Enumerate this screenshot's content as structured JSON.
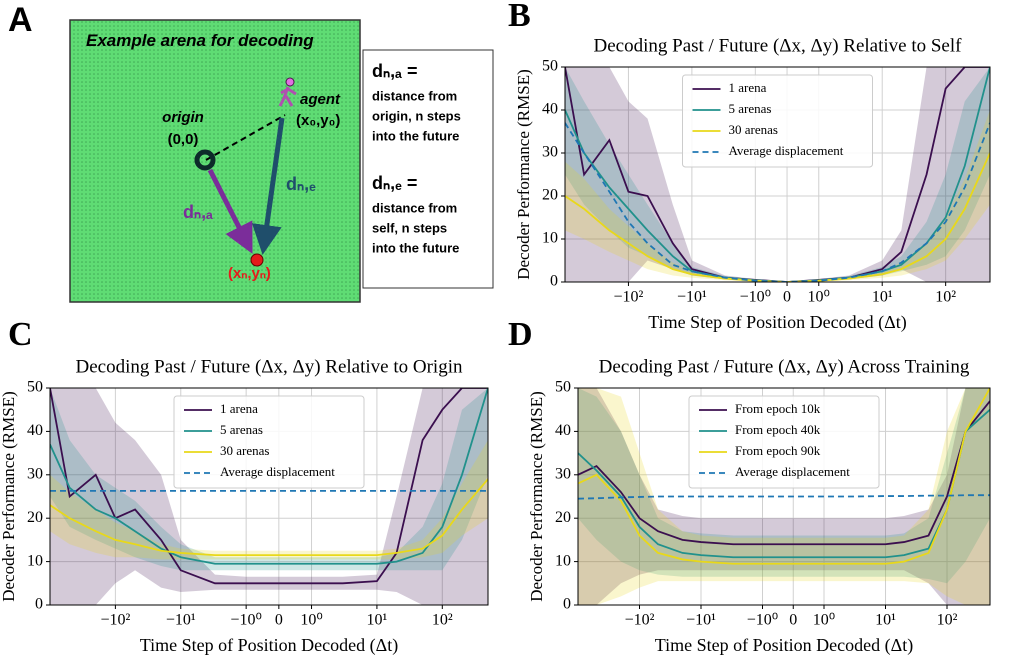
{
  "panels": [
    "A",
    "B",
    "C",
    "D"
  ],
  "diagram": {
    "title": "Example arena for decoding",
    "origin_label": "origin",
    "origin_coord": "(0,0)",
    "agent_label": "agent",
    "agent_coord": "(x₀,y₀)",
    "target_coord": "(xₙ,yₙ)",
    "arrow_a_label": "dₙ,ₐ",
    "arrow_e_label": "dₙ,ₑ",
    "definitions": [
      {
        "term": "dₙ,ₐ =",
        "lines": [
          "distance from",
          "origin, n steps",
          "into the future"
        ]
      },
      {
        "term": "dₙ,ₑ =",
        "lines": [
          "distance from",
          "self, n steps",
          "into the future"
        ]
      }
    ]
  },
  "chart_data": [
    {
      "type": "line",
      "title": "Decoding Past / Future (Δx, Δy) Relative to Self",
      "xlabel": "Time Step of Position Decoded (Δt)",
      "ylabel": "Decoder Performance (RMSE)",
      "xscale": "symlog",
      "grid": true,
      "legend": "upper center",
      "xlim": [
        -1000,
        500
      ],
      "ylim": [
        0,
        50
      ],
      "yticks": [
        0,
        10,
        20,
        30,
        40,
        50
      ],
      "xticks": [
        {
          "value": -100,
          "label": "−10²"
        },
        {
          "value": -10,
          "label": "−10¹"
        },
        {
          "value": -1,
          "label": "−10⁰"
        },
        0,
        {
          "value": 1,
          "label": "10⁰"
        },
        {
          "value": 10,
          "label": "10¹"
        },
        {
          "value": 100,
          "label": "10²"
        }
      ],
      "x": [
        -1000,
        -500,
        -200,
        -100,
        -50,
        -20,
        -10,
        -3,
        -1,
        0,
        1,
        3,
        10,
        20,
        50,
        100,
        200,
        500
      ],
      "series": [
        {
          "name": "1 arena",
          "color": "#3b0f4f",
          "values": [
            50,
            25,
            33,
            21,
            20,
            9,
            3,
            1,
            0.5,
            0,
            0.5,
            1,
            3,
            7,
            25,
            45,
            50,
            50
          ],
          "lower": [
            0,
            0,
            0,
            0,
            5,
            3,
            1.5,
            0.6,
            0.2,
            0,
            0.2,
            0.6,
            1.5,
            3,
            0,
            0,
            0,
            0
          ],
          "upper": [
            50,
            50,
            50,
            42,
            38,
            18,
            5,
            1.5,
            0.7,
            0,
            0.7,
            1.5,
            5,
            12,
            50,
            50,
            50,
            50
          ]
        },
        {
          "name": "5 arenas",
          "color": "#21918c",
          "values": [
            40,
            30,
            22,
            17,
            12,
            6,
            2.5,
            1,
            0.4,
            0,
            0.4,
            1,
            2.5,
            4,
            9,
            15,
            27,
            50
          ],
          "lower": [
            25,
            18,
            12,
            8,
            6,
            3,
            1.5,
            0.6,
            0.2,
            0,
            0.2,
            0.6,
            1.5,
            2.5,
            4,
            6,
            12,
            25
          ],
          "upper": [
            50,
            42,
            32,
            25,
            18,
            9,
            3.5,
            1.4,
            0.6,
            0,
            0.6,
            1.4,
            3.5,
            6,
            14,
            25,
            42,
            50
          ]
        },
        {
          "name": "30 arenas",
          "color": "#e8d81a",
          "values": [
            20,
            17,
            12,
            9,
            6,
            3,
            1.8,
            0.8,
            0.3,
            0,
            0.3,
            0.8,
            1.8,
            3,
            6,
            10,
            17,
            30
          ],
          "lower": [
            12,
            10,
            7,
            5,
            3,
            1.5,
            1,
            0.4,
            0.1,
            0,
            0.1,
            0.4,
            1,
            1.5,
            3,
            5,
            10,
            18
          ],
          "upper": [
            28,
            24,
            17,
            13,
            9,
            4.5,
            2.6,
            1.2,
            0.5,
            0,
            0.5,
            1.2,
            2.6,
            4.5,
            9,
            15,
            24,
            40
          ]
        },
        {
          "name": "Average displacement",
          "color": "#1f77b4",
          "dash": true,
          "values": [
            37,
            30,
            21,
            14,
            9,
            4,
            2.5,
            1,
            0.3,
            0,
            0.3,
            1,
            2.5,
            4.5,
            9,
            14,
            22,
            37
          ]
        }
      ]
    },
    {
      "type": "line",
      "title": "Decoding Past / Future (Δx, Δy) Relative to Origin",
      "xlabel": "Time Step of Position Decoded (Δt)",
      "ylabel": "Decoder Performance (RMSE)",
      "xscale": "symlog",
      "grid": true,
      "legend": "upper center",
      "xlim": [
        -1000,
        500
      ],
      "ylim": [
        0,
        50
      ],
      "yticks": [
        0,
        10,
        20,
        30,
        40,
        50
      ],
      "xticks": [
        {
          "value": -100,
          "label": "−10²"
        },
        {
          "value": -10,
          "label": "−10¹"
        },
        {
          "value": -1,
          "label": "−10⁰"
        },
        0,
        {
          "value": 1,
          "label": "10⁰"
        },
        {
          "value": 10,
          "label": "10¹"
        },
        {
          "value": 100,
          "label": "10²"
        }
      ],
      "x": [
        -1000,
        -500,
        -200,
        -100,
        -50,
        -20,
        -10,
        -3,
        -1,
        0,
        1,
        3,
        10,
        20,
        50,
        100,
        200,
        500
      ],
      "series": [
        {
          "name": "1 arena",
          "color": "#3b0f4f",
          "values": [
            50,
            25,
            30,
            20,
            22,
            15,
            8,
            5,
            5,
            5,
            5,
            5,
            5.5,
            12,
            38,
            45,
            50,
            50
          ],
          "lower": [
            0,
            0,
            0,
            5,
            8,
            4,
            3,
            3.5,
            3.5,
            3.5,
            3.5,
            3.5,
            3.5,
            3,
            0,
            0,
            0,
            0
          ],
          "upper": [
            50,
            50,
            50,
            42,
            38,
            30,
            15,
            7,
            6.5,
            6.5,
            6.5,
            6.5,
            7,
            25,
            50,
            50,
            50,
            50
          ]
        },
        {
          "name": "5 arenas",
          "color": "#21918c",
          "values": [
            37,
            27,
            22,
            20,
            17,
            13,
            11,
            9.5,
            9.5,
            9.5,
            9.5,
            9.5,
            9.5,
            10,
            12,
            18,
            30,
            50
          ],
          "lower": [
            25,
            18,
            15,
            13,
            11,
            9,
            8,
            8,
            8,
            8,
            8,
            8,
            8,
            8,
            8,
            8,
            15,
            30
          ],
          "upper": [
            50,
            38,
            30,
            27,
            24,
            18,
            14,
            11,
            11,
            11,
            11,
            11,
            11,
            12,
            18,
            28,
            45,
            50
          ]
        },
        {
          "name": "30 arenas",
          "color": "#e8d81a",
          "values": [
            23,
            20,
            17,
            15,
            14,
            12.5,
            12,
            11.5,
            11.5,
            11.5,
            11.5,
            11.5,
            11.5,
            12,
            13,
            16,
            22,
            29
          ],
          "lower": [
            17,
            14,
            12,
            11,
            11,
            10.5,
            10.5,
            10.5,
            10.5,
            10.5,
            10.5,
            10.5,
            10.5,
            10.5,
            11,
            12,
            16,
            20
          ],
          "upper": [
            30,
            26,
            22,
            19,
            17,
            14,
            13,
            12.5,
            12.5,
            12.5,
            12.5,
            12.5,
            12.5,
            13,
            15,
            20,
            28,
            38
          ]
        },
        {
          "name": "Average displacement",
          "color": "#1f77b4",
          "dash": true,
          "values": [
            26.3,
            26.3,
            26.3,
            26.3,
            26.3,
            26.3,
            26.3,
            26.3,
            26.3,
            26.3,
            26.3,
            26.3,
            26.3,
            26.3,
            26.3,
            26.3,
            26.3,
            26.3
          ]
        }
      ]
    },
    {
      "type": "line",
      "title": "Decoding Past / Future (Δx, Δy) Across Training",
      "xlabel": "Time Step of Position Decoded (Δt)",
      "ylabel": "Decoder Performance (RMSE)",
      "xscale": "symlog",
      "grid": true,
      "legend": "upper center",
      "xlim": [
        -1000,
        500
      ],
      "ylim": [
        0,
        50
      ],
      "yticks": [
        0,
        10,
        20,
        30,
        40,
        50
      ],
      "xticks": [
        {
          "value": -100,
          "label": "−10²"
        },
        {
          "value": -10,
          "label": "−10¹"
        },
        {
          "value": -1,
          "label": "−10⁰"
        },
        0,
        {
          "value": 1,
          "label": "10⁰"
        },
        {
          "value": 10,
          "label": "10¹"
        },
        {
          "value": 100,
          "label": "10²"
        }
      ],
      "x": [
        -1000,
        -500,
        -200,
        -100,
        -50,
        -20,
        -10,
        -3,
        -1,
        0,
        1,
        3,
        10,
        20,
        50,
        100,
        200,
        500
      ],
      "series": [
        {
          "name": "From epoch 10k",
          "color": "#3b0f4f",
          "values": [
            30,
            32,
            26,
            20,
            17,
            15,
            14.5,
            14,
            14,
            14,
            14,
            14,
            14,
            14.5,
            16,
            25,
            40,
            47
          ],
          "lower": [
            0,
            0,
            5,
            7,
            8,
            8,
            8,
            8,
            8,
            8,
            8,
            8,
            8,
            8,
            5,
            0,
            0,
            0
          ],
          "upper": [
            50,
            50,
            40,
            30,
            22,
            20.5,
            20,
            20,
            20,
            20,
            20,
            20,
            20,
            20.5,
            22,
            30,
            50,
            50
          ]
        },
        {
          "name": "From epoch 40k",
          "color": "#21918c",
          "values": [
            35,
            31,
            25,
            18,
            14,
            12,
            11.5,
            11,
            11,
            11,
            11,
            11,
            11,
            11.5,
            13,
            22,
            40,
            45
          ],
          "lower": [
            20,
            15,
            10,
            8,
            7,
            6.5,
            6.5,
            6.5,
            6.5,
            6.5,
            6.5,
            6.5,
            6.5,
            6.5,
            6,
            5,
            10,
            20
          ],
          "upper": [
            50,
            48,
            40,
            30,
            20,
            17,
            16.5,
            16,
            16,
            16,
            16,
            16,
            16,
            16.5,
            20,
            35,
            50,
            50
          ]
        },
        {
          "name": "From epoch 90k",
          "color": "#e8d81a",
          "values": [
            28,
            30,
            24,
            16,
            12,
            10.5,
            10,
            9.5,
            9.5,
            9.5,
            9.5,
            9.5,
            9.5,
            10,
            12,
            22,
            40,
            50
          ],
          "lower": [
            0,
            0,
            2,
            4,
            5.5,
            5.5,
            5.5,
            5.5,
            5.5,
            5.5,
            5.5,
            5.5,
            5.5,
            5.5,
            5,
            2,
            0,
            0
          ],
          "upper": [
            50,
            50,
            48,
            35,
            22,
            17,
            16,
            15.5,
            15.5,
            15.5,
            15.5,
            15.5,
            15.5,
            16,
            22,
            40,
            50,
            50
          ]
        },
        {
          "name": "Average displacement",
          "color": "#1f77b4",
          "dash": true,
          "values": [
            24.5,
            24.6,
            24.8,
            24.9,
            25,
            25,
            25,
            25,
            25,
            25,
            25,
            25,
            25.1,
            25.1,
            25.2,
            25.2,
            25.3,
            25.3
          ]
        }
      ]
    }
  ]
}
